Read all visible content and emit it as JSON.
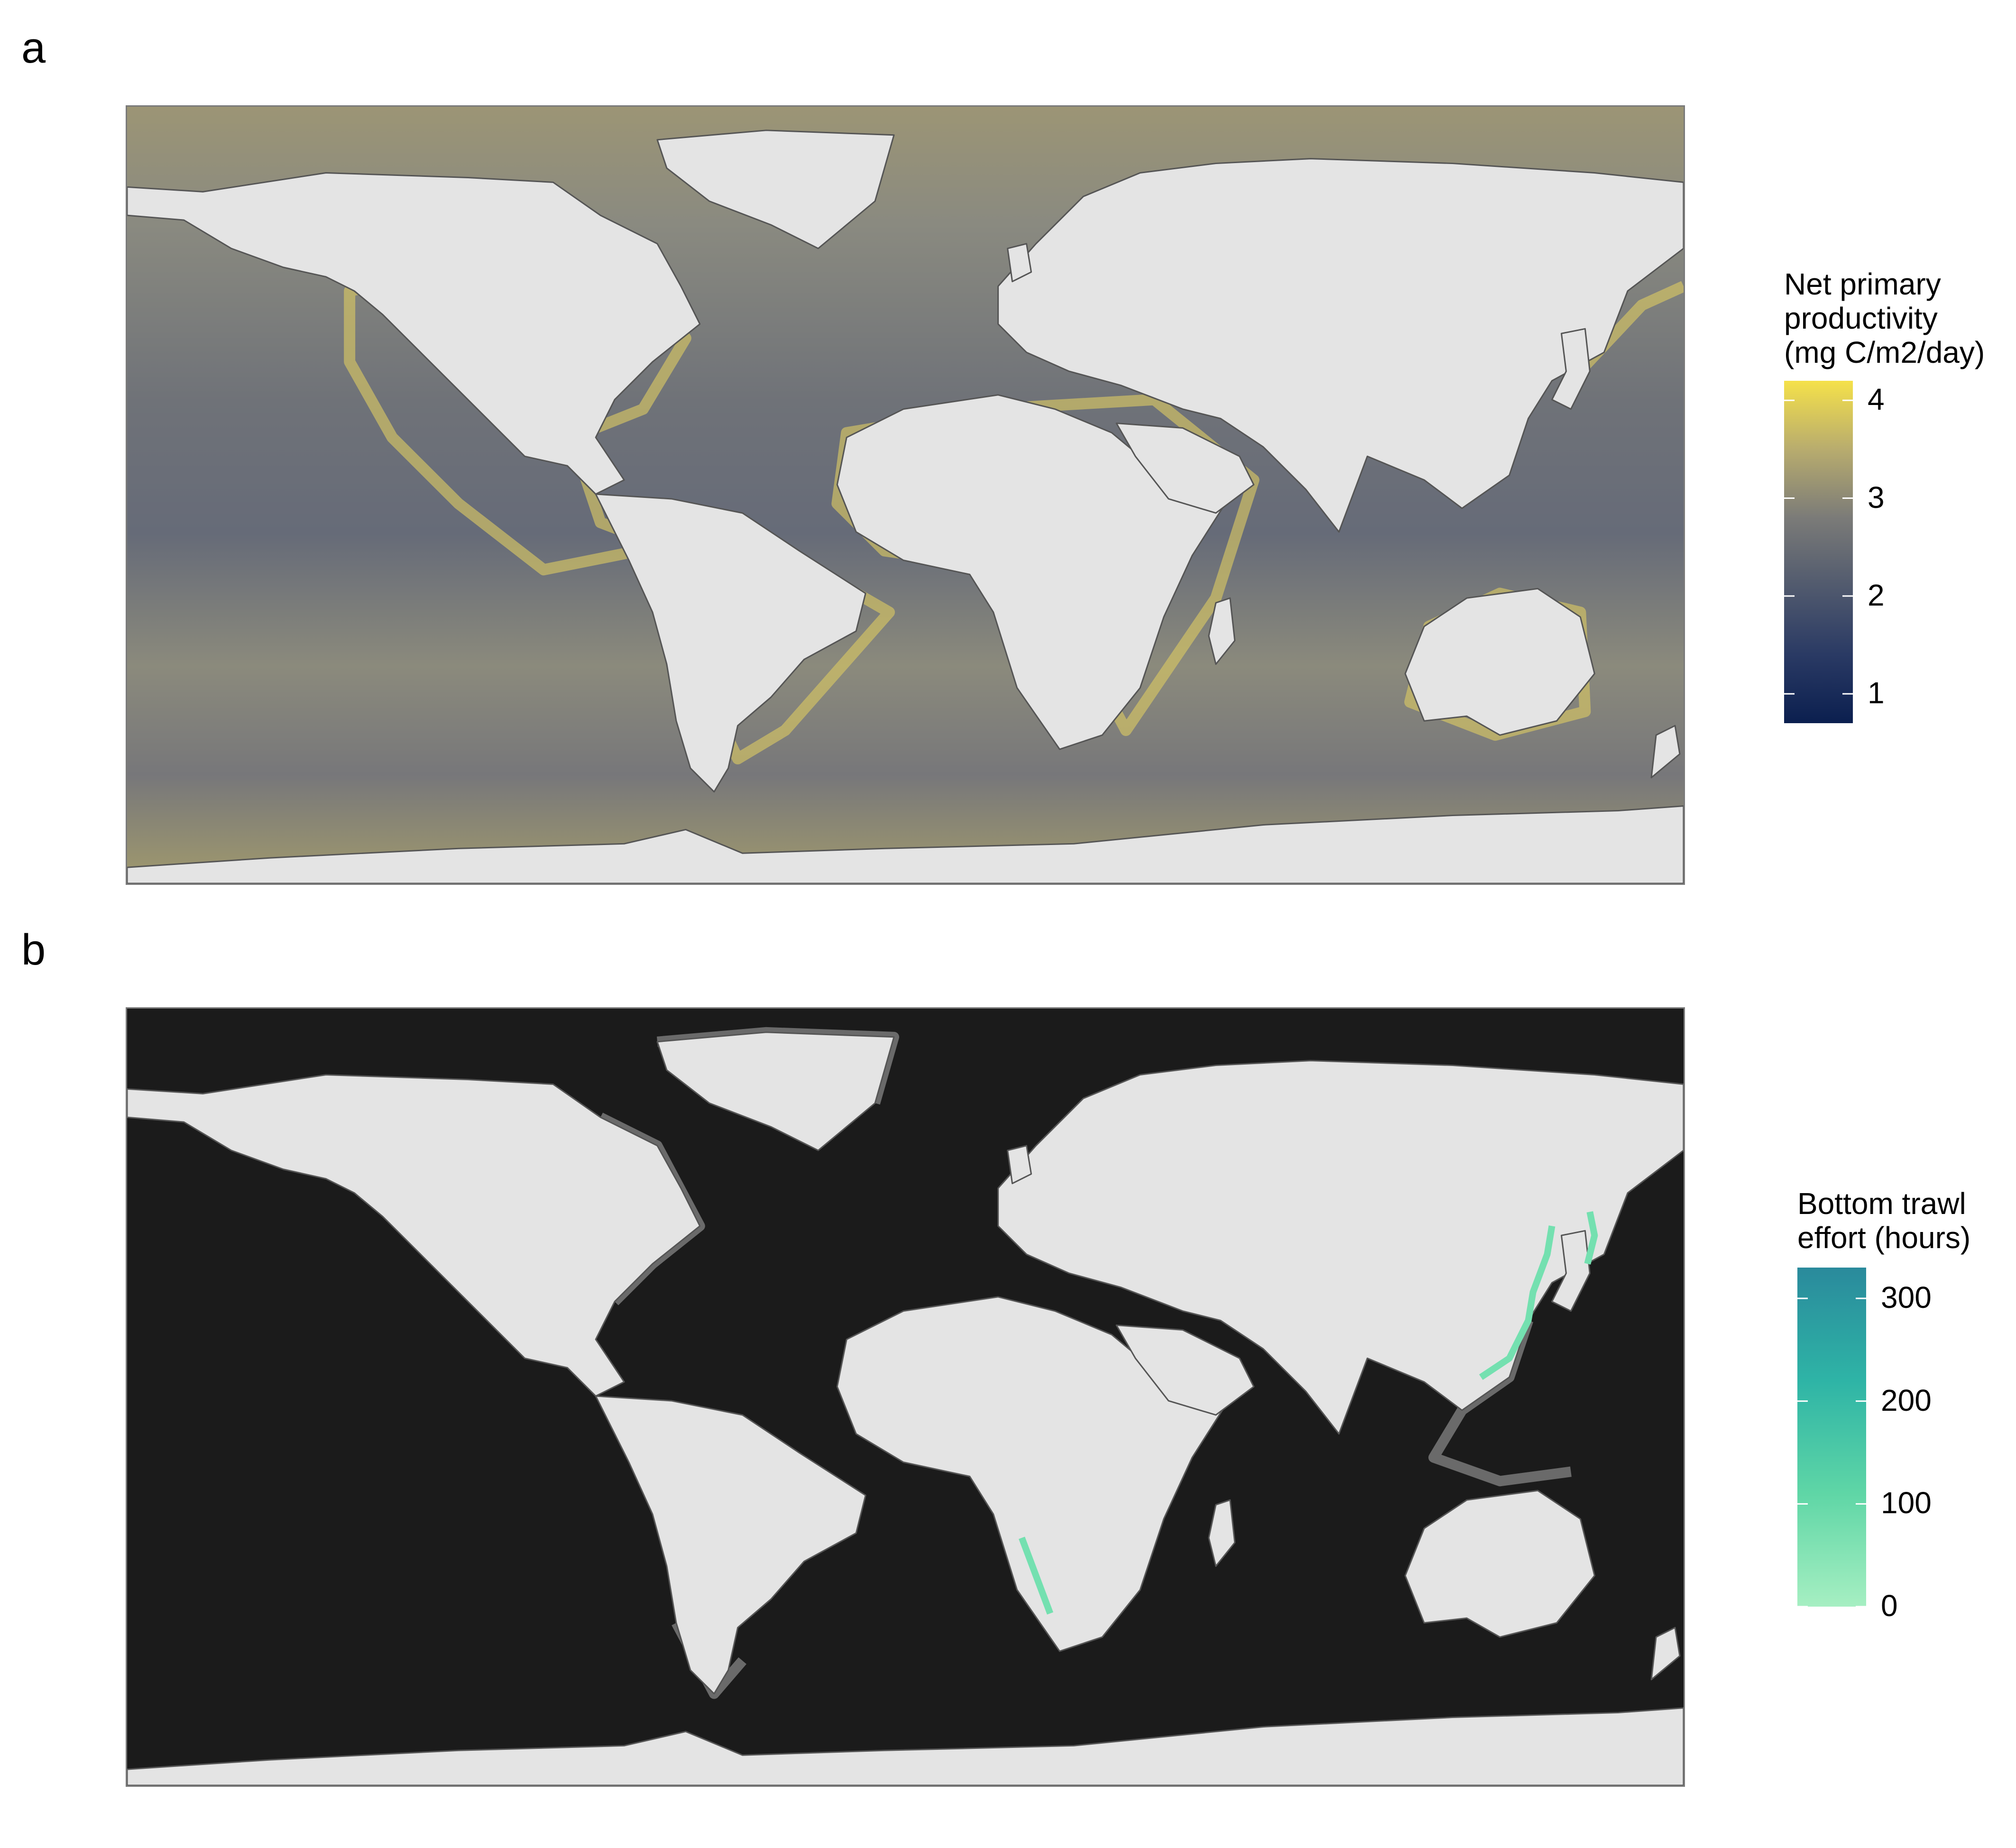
{
  "panels": [
    {
      "label": "a",
      "legend": {
        "title": "Net primary\nproductivity\n(mg C/m2/day)",
        "ticks": [
          {
            "label": "4",
            "value": 4
          },
          {
            "label": "3",
            "value": 3
          },
          {
            "label": "2",
            "value": 2
          },
          {
            "label": "1",
            "value": 1
          }
        ],
        "range": [
          0.7,
          4.2
        ],
        "colors": [
          "#f5e14a",
          "#b8ac6e",
          "#7b7b78",
          "#515a6e",
          "#2a3a64",
          "#0b1f4f"
        ]
      },
      "colors": {
        "ocean": "#7e7f80",
        "land": "#e4e4e4",
        "coast_glow": "#d9c96a"
      }
    },
    {
      "label": "b",
      "legend": {
        "title": "Bottom trawl\neffort (hours)",
        "ticks": [
          {
            "label": "300",
            "value": 300
          },
          {
            "label": "200",
            "value": 200
          },
          {
            "label": "100",
            "value": 100
          },
          {
            "label": "0",
            "value": 0
          }
        ],
        "range": [
          0,
          330
        ],
        "colors": [
          "#2a8a9c",
          "#2eb4a6",
          "#5fd6a6",
          "#a6efc2"
        ]
      },
      "colors": {
        "ocean": "#1b1b1b",
        "land": "#e4e4e4",
        "shelf": "#6a6a6a",
        "effort": "#74e0b0"
      }
    }
  ]
}
